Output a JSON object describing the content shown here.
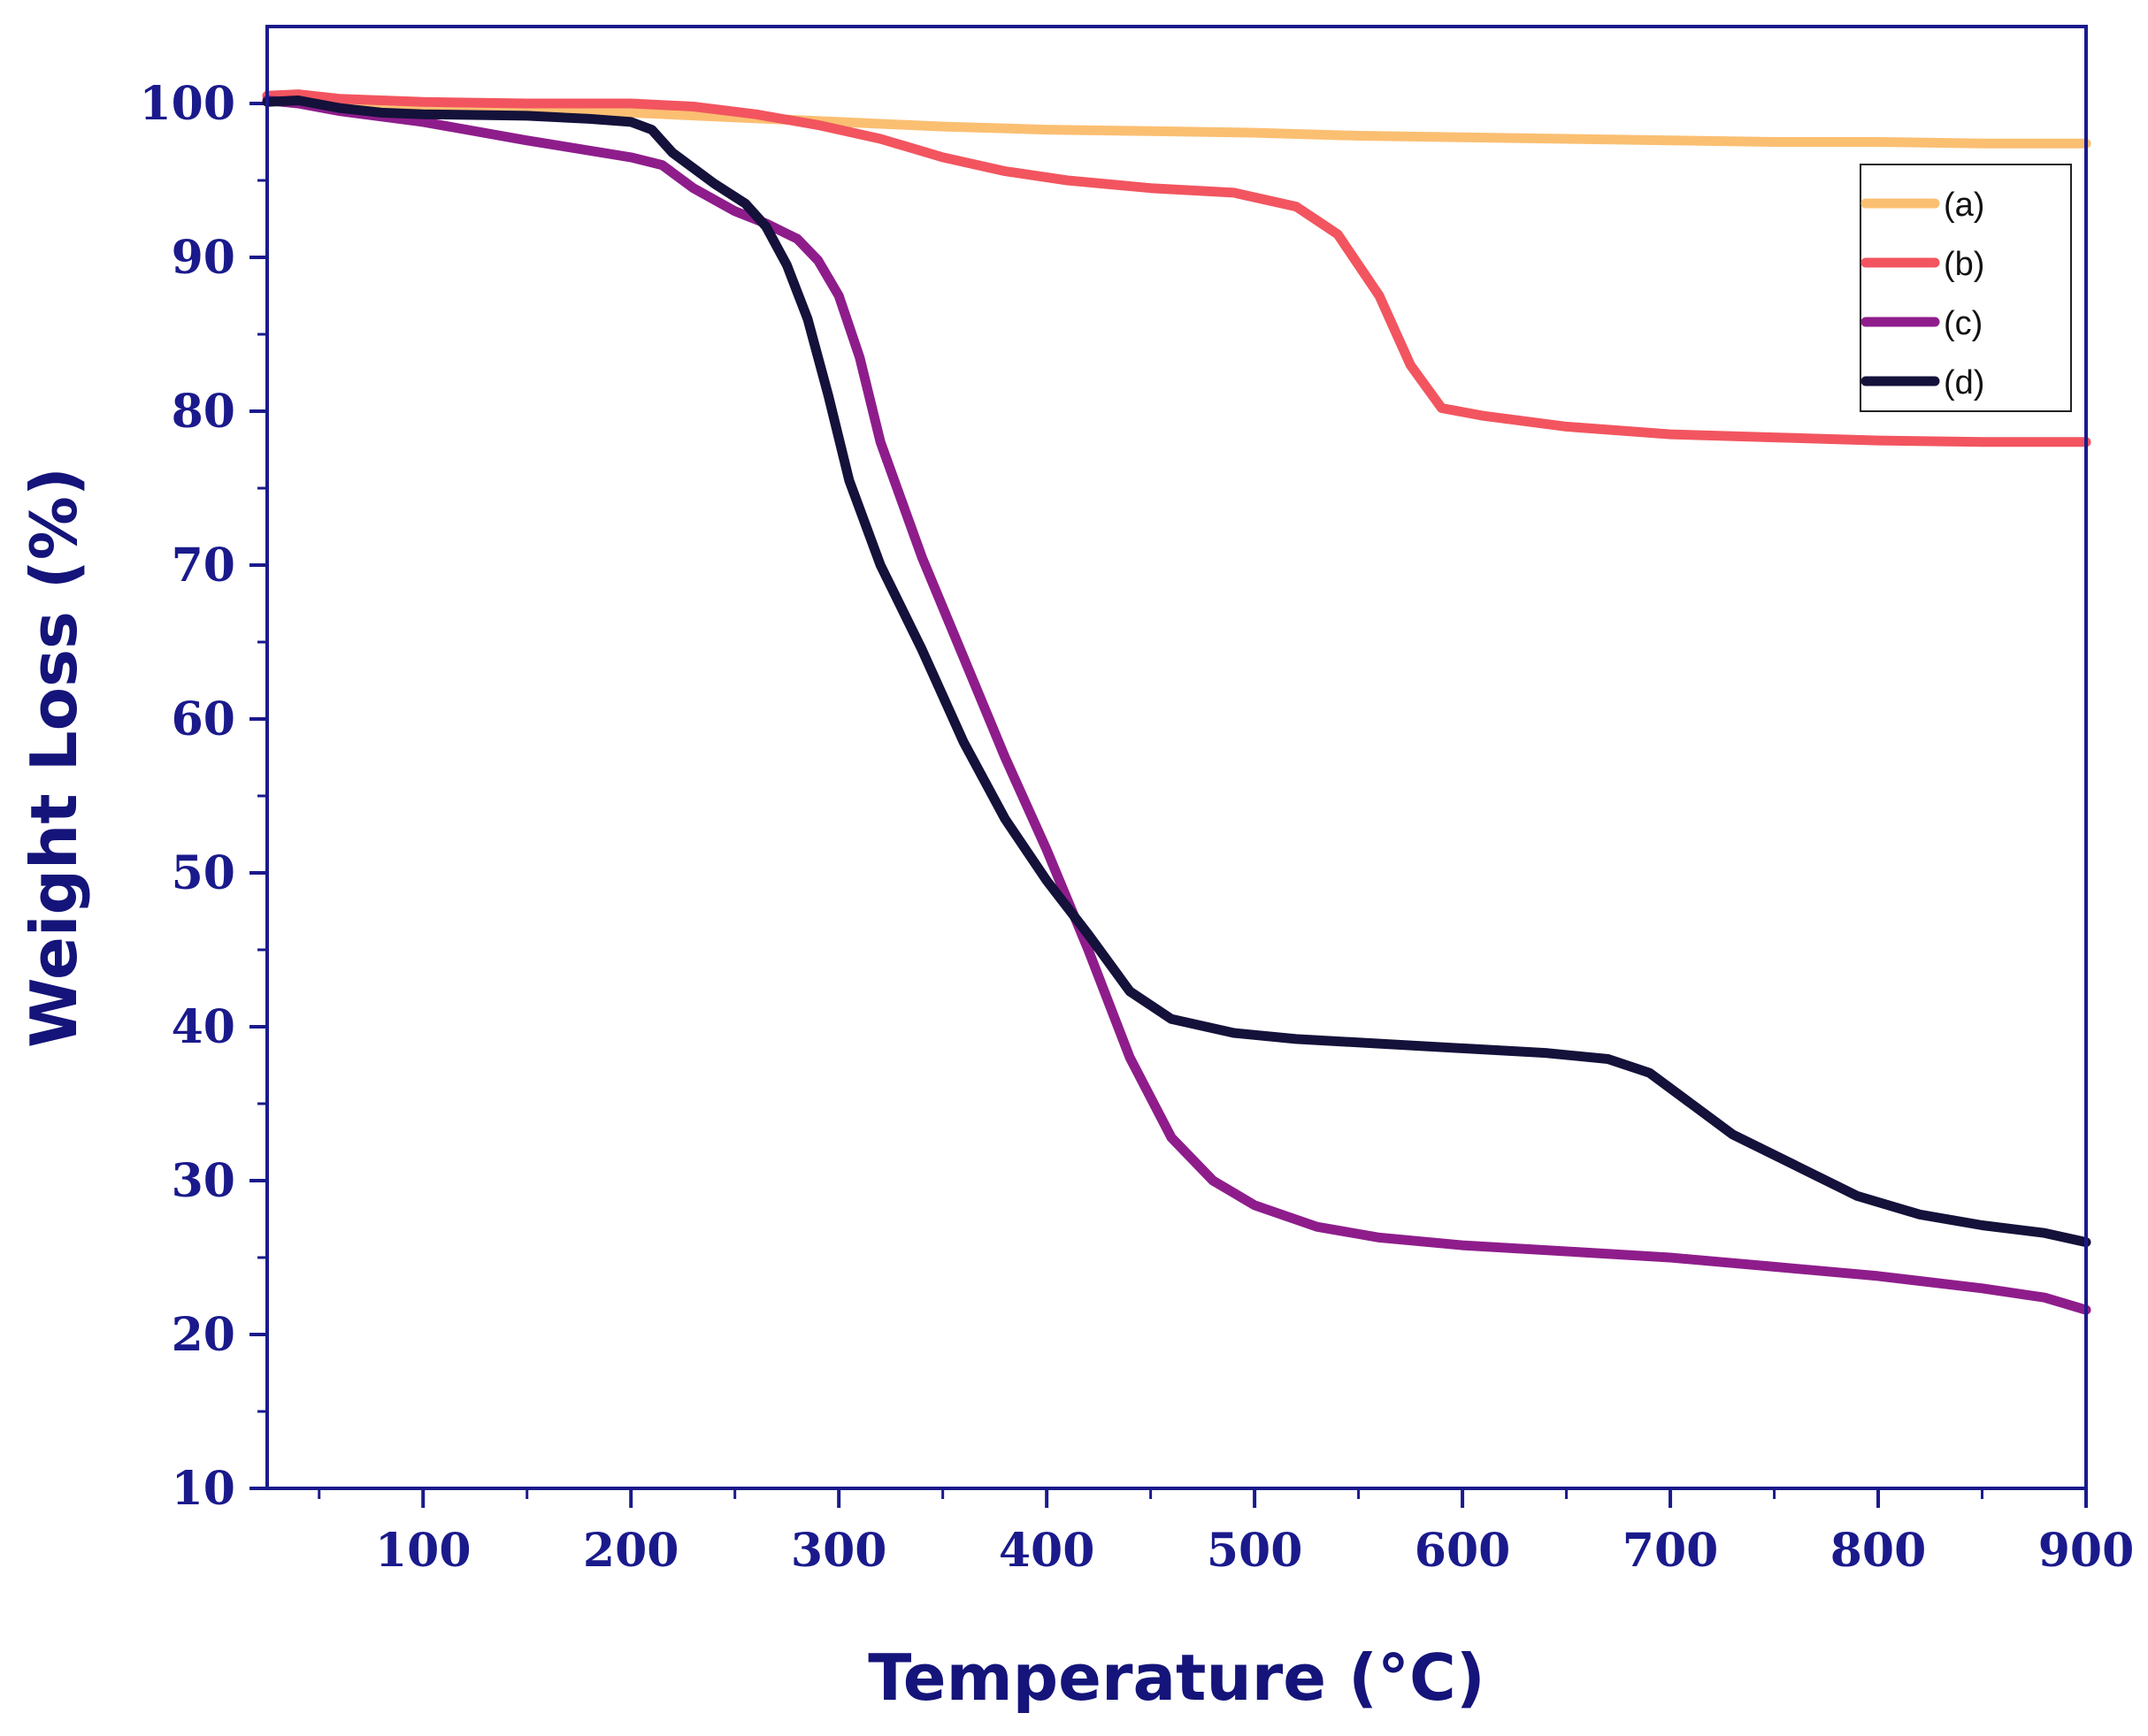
{
  "chart_data": {
    "type": "line",
    "title": "",
    "xlabel": "Temperature (°C)",
    "ylabel": "Weight Loss (%)",
    "xlim": [
      25,
      900
    ],
    "ylim": [
      10,
      105
    ],
    "x_ticks": [
      100,
      200,
      300,
      400,
      500,
      600,
      700,
      800,
      900
    ],
    "y_ticks": [
      10,
      20,
      30,
      40,
      50,
      60,
      70,
      80,
      90,
      100
    ],
    "legend_position": "top-right",
    "axis_color": "#1a1a8c",
    "series": [
      {
        "name": "(a)",
        "color": "#fbbf72",
        "points": [
          [
            25,
            100.2
          ],
          [
            40,
            100.3
          ],
          [
            60,
            100.1
          ],
          [
            100,
            99.8
          ],
          [
            150,
            99.6
          ],
          [
            200,
            99.4
          ],
          [
            250,
            99.1
          ],
          [
            300,
            98.8
          ],
          [
            350,
            98.5
          ],
          [
            400,
            98.3
          ],
          [
            450,
            98.2
          ],
          [
            500,
            98.1
          ],
          [
            550,
            97.9
          ],
          [
            600,
            97.8
          ],
          [
            650,
            97.7
          ],
          [
            700,
            97.6
          ],
          [
            750,
            97.5
          ],
          [
            800,
            97.5
          ],
          [
            850,
            97.4
          ],
          [
            900,
            97.4
          ]
        ]
      },
      {
        "name": "(b)",
        "color": "#f2555f",
        "points": [
          [
            25,
            100.5
          ],
          [
            40,
            100.6
          ],
          [
            60,
            100.3
          ],
          [
            100,
            100.1
          ],
          [
            150,
            100.0
          ],
          [
            200,
            100.0
          ],
          [
            230,
            99.8
          ],
          [
            260,
            99.3
          ],
          [
            290,
            98.6
          ],
          [
            320,
            97.7
          ],
          [
            350,
            96.5
          ],
          [
            380,
            95.6
          ],
          [
            410,
            95.0
          ],
          [
            450,
            94.5
          ],
          [
            490,
            94.2
          ],
          [
            520,
            93.3
          ],
          [
            540,
            91.5
          ],
          [
            560,
            87.5
          ],
          [
            575,
            83.0
          ],
          [
            590,
            80.2
          ],
          [
            610,
            79.7
          ],
          [
            650,
            79.0
          ],
          [
            700,
            78.5
          ],
          [
            750,
            78.3
          ],
          [
            800,
            78.1
          ],
          [
            850,
            78.0
          ],
          [
            900,
            78.0
          ]
        ]
      },
      {
        "name": "(c)",
        "color": "#8e1d8b",
        "points": [
          [
            25,
            100.2
          ],
          [
            40,
            100.0
          ],
          [
            60,
            99.5
          ],
          [
            100,
            98.8
          ],
          [
            150,
            97.6
          ],
          [
            200,
            96.5
          ],
          [
            215,
            96.0
          ],
          [
            230,
            94.5
          ],
          [
            250,
            93.0
          ],
          [
            265,
            92.2
          ],
          [
            280,
            91.2
          ],
          [
            290,
            89.8
          ],
          [
            300,
            87.5
          ],
          [
            310,
            83.5
          ],
          [
            320,
            78.0
          ],
          [
            340,
            70.5
          ],
          [
            360,
            64.0
          ],
          [
            380,
            57.5
          ],
          [
            400,
            51.5
          ],
          [
            420,
            45.0
          ],
          [
            440,
            38.0
          ],
          [
            460,
            32.8
          ],
          [
            480,
            30.0
          ],
          [
            500,
            28.4
          ],
          [
            530,
            27.0
          ],
          [
            560,
            26.3
          ],
          [
            600,
            25.8
          ],
          [
            650,
            25.4
          ],
          [
            700,
            25.0
          ],
          [
            750,
            24.4
          ],
          [
            800,
            23.8
          ],
          [
            850,
            23.0
          ],
          [
            880,
            22.4
          ],
          [
            900,
            21.6
          ]
        ]
      },
      {
        "name": "(d)",
        "color": "#14113a",
        "points": [
          [
            25,
            100.1
          ],
          [
            40,
            100.2
          ],
          [
            60,
            99.7
          ],
          [
            80,
            99.4
          ],
          [
            100,
            99.3
          ],
          [
            150,
            99.2
          ],
          [
            180,
            99.0
          ],
          [
            200,
            98.8
          ],
          [
            210,
            98.3
          ],
          [
            220,
            96.8
          ],
          [
            240,
            94.8
          ],
          [
            255,
            93.5
          ],
          [
            265,
            92.0
          ],
          [
            275,
            89.5
          ],
          [
            285,
            86.0
          ],
          [
            295,
            81.0
          ],
          [
            305,
            75.5
          ],
          [
            320,
            70.0
          ],
          [
            340,
            64.5
          ],
          [
            360,
            58.5
          ],
          [
            380,
            53.5
          ],
          [
            400,
            49.5
          ],
          [
            420,
            46.0
          ],
          [
            440,
            42.3
          ],
          [
            460,
            40.5
          ],
          [
            490,
            39.6
          ],
          [
            520,
            39.2
          ],
          [
            560,
            38.9
          ],
          [
            600,
            38.6
          ],
          [
            640,
            38.3
          ],
          [
            670,
            37.9
          ],
          [
            690,
            37.0
          ],
          [
            710,
            35.0
          ],
          [
            730,
            33.0
          ],
          [
            760,
            31.0
          ],
          [
            790,
            29.0
          ],
          [
            820,
            27.8
          ],
          [
            850,
            27.1
          ],
          [
            880,
            26.6
          ],
          [
            900,
            26.0
          ]
        ]
      }
    ]
  }
}
